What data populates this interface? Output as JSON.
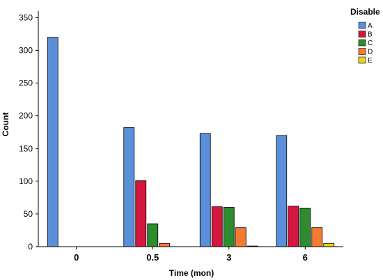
{
  "chart_data": {
    "type": "bar",
    "xlabel": "Time (mon)",
    "ylabel": "Count",
    "categories": [
      "0",
      "0.5",
      "3",
      "6"
    ],
    "ylim": [
      0,
      360
    ],
    "yticks": [
      0,
      50,
      100,
      150,
      200,
      250,
      300,
      350
    ],
    "legend": {
      "title": "Disable",
      "placement": "top-right"
    },
    "series": [
      {
        "name": "A",
        "color": "#5b8fd9",
        "values": [
          320,
          182,
          173,
          170
        ]
      },
      {
        "name": "B",
        "color": "#d3173f",
        "values": [
          0,
          101,
          61,
          62
        ]
      },
      {
        "name": "C",
        "color": "#2e8b2e",
        "values": [
          0,
          35,
          60,
          59
        ]
      },
      {
        "name": "D",
        "color": "#f57a32",
        "values": [
          0,
          5,
          29,
          29
        ]
      },
      {
        "name": "E",
        "color": "#e8d21e",
        "values": [
          0,
          0,
          1,
          5
        ]
      }
    ],
    "grid": false
  }
}
